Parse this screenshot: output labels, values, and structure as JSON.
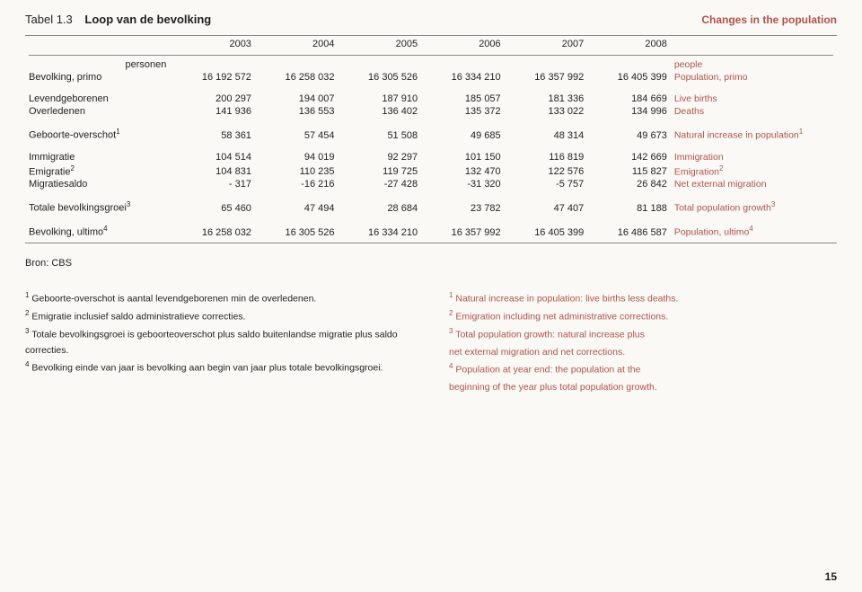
{
  "colors": {
    "accent": "#b0524a",
    "text": "#222222",
    "bg": "#fbf9f6",
    "rule": "#888888"
  },
  "title": {
    "prefix": "Tabel 1.3",
    "nl": "Loop van de bevolking",
    "en": "Changes in the population"
  },
  "years": [
    "2003",
    "2004",
    "2005",
    "2006",
    "2007",
    "2008"
  ],
  "unit_nl": "personen",
  "unit_en": "people",
  "rows": [
    {
      "lbl_nl": "Bevolking, primo",
      "vals": [
        "16 192 572",
        "16 258 032",
        "16 305 526",
        "16 334 210",
        "16 357 992",
        "16 405 399"
      ],
      "lbl_en": "Population, primo"
    }
  ],
  "rows2": [
    {
      "lbl_nl": "Levendgeborenen",
      "vals": [
        "200 297",
        "194 007",
        "187 910",
        "185 057",
        "181 336",
        "184 669"
      ],
      "lbl_en": "Live births"
    },
    {
      "lbl_nl": "Overledenen",
      "vals": [
        "141 936",
        "136 553",
        "136 402",
        "135 372",
        "133 022",
        "134 996"
      ],
      "lbl_en": "Deaths"
    }
  ],
  "rows3": [
    {
      "lbl_nl": "Geboorte-overschot",
      "sup_nl": "1",
      "vals": [
        "58 361",
        "57 454",
        "51 508",
        "49 685",
        "48 314",
        "49 673"
      ],
      "lbl_en": "Natural increase in population",
      "sup_en": "1"
    }
  ],
  "rows4": [
    {
      "lbl_nl": "Immigratie",
      "vals": [
        "104 514",
        "94 019",
        "92 297",
        "101 150",
        "116 819",
        "142 669"
      ],
      "lbl_en": "Immigration"
    },
    {
      "lbl_nl": "Emigratie",
      "sup_nl": "2",
      "vals": [
        "104 831",
        "110 235",
        "119 725",
        "132 470",
        "122 576",
        "115 827"
      ],
      "lbl_en": "Emigration",
      "sup_en": "2"
    },
    {
      "lbl_nl": "Migratiesaldo",
      "vals": [
        "- 317",
        "-16 216",
        "-27 428",
        "-31 320",
        "-5 757",
        "26 842"
      ],
      "lbl_en": "Net external migration"
    }
  ],
  "rows5": [
    {
      "lbl_nl": "Totale bevolkingsgroei",
      "sup_nl": "3",
      "vals": [
        "65 460",
        "47 494",
        "28 684",
        "23 782",
        "47 407",
        "81 188"
      ],
      "lbl_en": "Total population growth",
      "sup_en": "3"
    }
  ],
  "rows6": [
    {
      "lbl_nl": "Bevolking, ultimo",
      "sup_nl": "4",
      "vals": [
        "16 258 032",
        "16 305 526",
        "16 334 210",
        "16 357 992",
        "16 405 399",
        "16 486 587"
      ],
      "lbl_en": "Population, ultimo",
      "sup_en": "4"
    }
  ],
  "source": "Bron: CBS",
  "footnotes_nl": [
    {
      "n": "1",
      "t": "Geboorte-overschot is aantal levendgeborenen min de overledenen."
    },
    {
      "n": "2",
      "t": "Emigratie inclusief saldo administratieve correcties."
    },
    {
      "n": "3",
      "t": "Totale bevolkingsgroei is geboorteoverschot plus saldo buitenlandse migratie plus saldo correcties."
    },
    {
      "n": "4",
      "t": "Bevolking einde van jaar is bevolking aan begin van jaar plus totale bevolkingsgroei."
    }
  ],
  "footnotes_en": [
    {
      "n": "1",
      "t": "Natural increase in population: live births less deaths."
    },
    {
      "n": "2",
      "t": "Emigration including net administrative corrections."
    },
    {
      "n": "3",
      "t": "Total population growth: natural increase plus"
    },
    {
      "n": "",
      "t": "net external migration and net corrections."
    },
    {
      "n": "4",
      "t": "Population at year end: the population at the"
    },
    {
      "n": "",
      "t": "beginning of the year plus total population growth."
    }
  ],
  "page_number": "15"
}
